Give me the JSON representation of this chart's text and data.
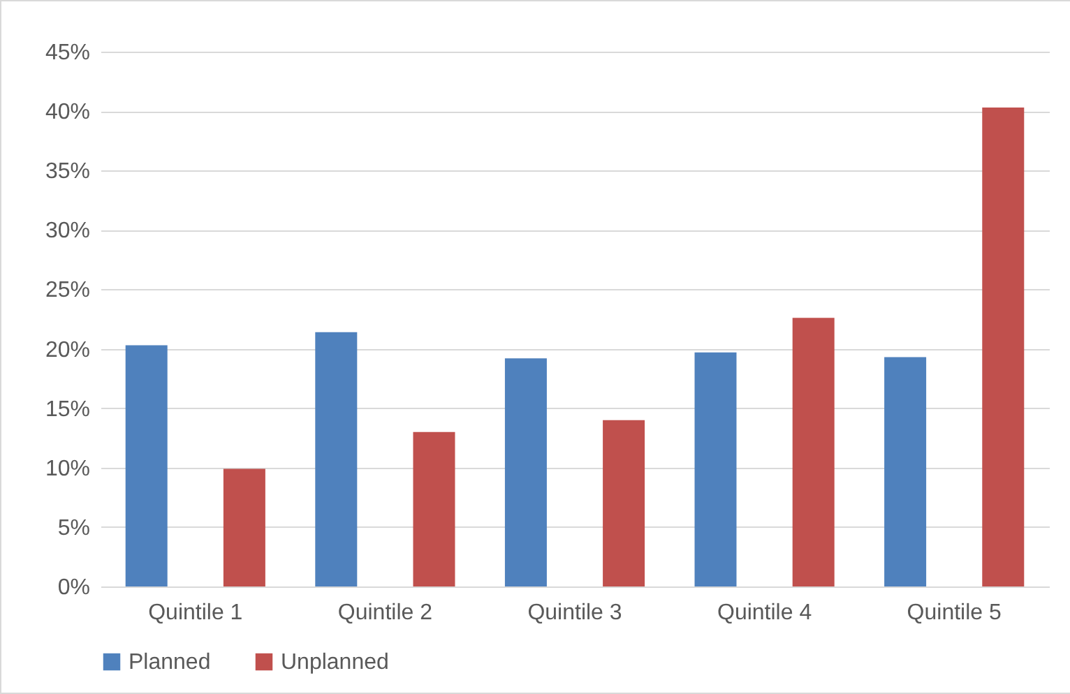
{
  "chart_data": {
    "type": "bar",
    "categories": [
      "Quintile 1",
      "Quintile 2",
      "Quintile 3",
      "Quintile 4",
      "Quintile 5"
    ],
    "series": [
      {
        "name": "Planned",
        "color": "#4f81bd",
        "values": [
          20.3,
          21.4,
          19.2,
          19.7,
          19.3
        ]
      },
      {
        "name": "Unplanned",
        "color": "#c0504d",
        "values": [
          9.9,
          13.0,
          14.0,
          22.6,
          40.3
        ]
      }
    ],
    "ylim": [
      0,
      45
    ],
    "yticks": [
      {
        "value": 0,
        "label": "0%"
      },
      {
        "value": 5,
        "label": "5%"
      },
      {
        "value": 10,
        "label": "10%"
      },
      {
        "value": 15,
        "label": "15%"
      },
      {
        "value": 20,
        "label": "20%"
      },
      {
        "value": 25,
        "label": "25%"
      },
      {
        "value": 30,
        "label": "30%"
      },
      {
        "value": 35,
        "label": "35%"
      },
      {
        "value": 40,
        "label": "40%"
      },
      {
        "value": 45,
        "label": "45%"
      }
    ],
    "grid": "y",
    "legend": "bottom"
  }
}
